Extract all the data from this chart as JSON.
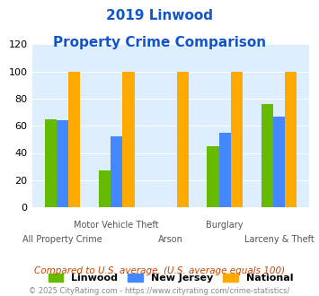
{
  "title_line1": "2019 Linwood",
  "title_line2": "Property Crime Comparison",
  "categories": [
    "All Property Crime",
    "Motor Vehicle Theft",
    "Arson",
    "Burglary",
    "Larceny & Theft"
  ],
  "top_labels": {
    "1": "Motor Vehicle Theft",
    "3": "Burglary"
  },
  "bottom_labels": {
    "0": "All Property Crime",
    "2": "Arson",
    "4": "Larceny & Theft"
  },
  "linwood": [
    65,
    27,
    0,
    45,
    76
  ],
  "new_jersey": [
    64,
    52,
    0,
    55,
    67
  ],
  "national": [
    100,
    100,
    100,
    100,
    100
  ],
  "colors": {
    "linwood": "#66bb00",
    "new_jersey": "#4488ff",
    "national": "#ffaa00"
  },
  "ylim": [
    0,
    120
  ],
  "yticks": [
    0,
    20,
    40,
    60,
    80,
    100,
    120
  ],
  "legend_labels": [
    "Linwood",
    "New Jersey",
    "National"
  ],
  "footnote1": "Compared to U.S. average. (U.S. average equals 100)",
  "footnote2": "© 2025 CityRating.com - https://www.cityrating.com/crime-statistics/",
  "title_color": "#1155cc",
  "footnote1_color": "#cc4400",
  "footnote2_color": "#888888",
  "bg_color": "#ddeeff",
  "bar_width": 0.22
}
